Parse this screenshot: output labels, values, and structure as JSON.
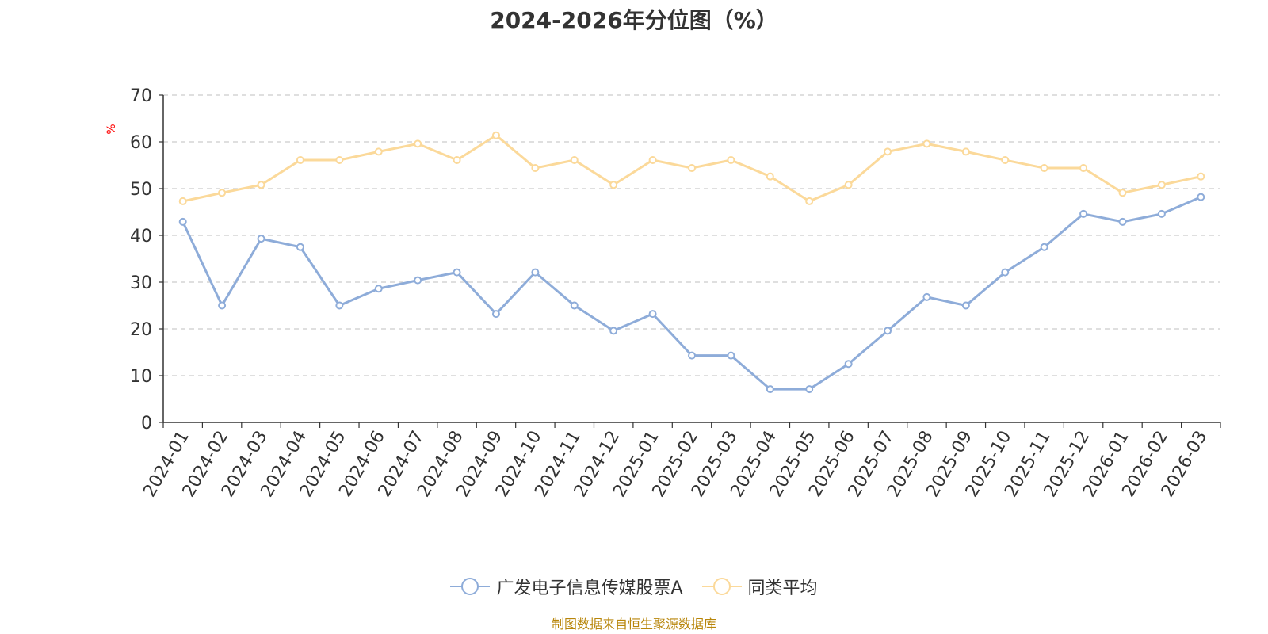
{
  "chart_data": {
    "type": "line",
    "title": "2024-2026年分位图（%）",
    "ylabel": "%",
    "xlabel": "",
    "ylim": [
      0,
      70
    ],
    "yticks": [
      0,
      10,
      20,
      30,
      40,
      50,
      60,
      70
    ],
    "grid": true,
    "legend_position": "bottom",
    "categories": [
      "2024-01",
      "2024-02",
      "2024-03",
      "2024-04",
      "2024-05",
      "2024-06",
      "2024-07",
      "2024-08",
      "2024-09",
      "2024-10",
      "2024-11",
      "2024-12",
      "2025-01",
      "2025-02",
      "2025-03",
      "2025-04",
      "2025-05",
      "2025-06",
      "2025-07",
      "2025-08",
      "2025-09",
      "2025-10",
      "2025-11",
      "2025-12",
      "2026-01",
      "2026-02",
      "2026-03"
    ],
    "series": [
      {
        "name": "广发电子信息传媒股票A",
        "color": "#8eacd9",
        "values": [
          42.9,
          25.0,
          39.3,
          37.5,
          25.0,
          28.6,
          30.4,
          32.1,
          23.2,
          32.1,
          25.0,
          19.6,
          23.2,
          14.3,
          14.3,
          7.1,
          7.1,
          12.5,
          19.6,
          26.8,
          25.0,
          32.1,
          37.5,
          44.6,
          42.9,
          44.6,
          48.2
        ]
      },
      {
        "name": "同类平均",
        "color": "#fbd99a",
        "values": [
          47.3,
          49.1,
          50.8,
          56.1,
          56.1,
          57.9,
          59.6,
          56.1,
          61.4,
          54.4,
          56.1,
          50.8,
          56.1,
          54.4,
          56.1,
          52.6,
          47.3,
          50.8,
          57.9,
          59.6,
          57.9,
          56.1,
          54.4,
          54.4,
          49.1,
          50.8,
          52.6
        ]
      }
    ]
  },
  "source_note": "制图数据来自恒生聚源数据库"
}
